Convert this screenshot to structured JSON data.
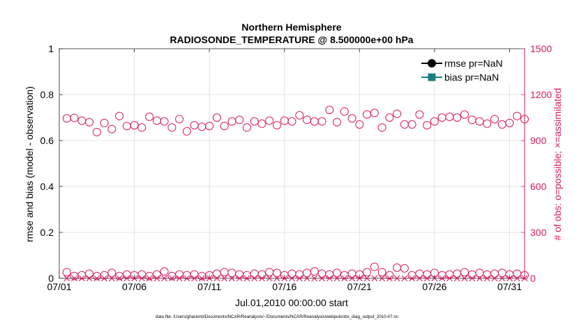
{
  "chart_data": {
    "type": "scatter",
    "title": "Northern Hemisphere",
    "subtitle": "RADIOSONDE_TEMPERATURE @ 8.500000e+00 hPa",
    "xlabel": "Jul.01,2010 00:00:00 start",
    "ylabel_left": "rmse and bias (model - observation)",
    "ylabel_right": "# of obs: o=possible; ×=assimilated",
    "footnote": "data file: /Users/gharamti/Documents/NCAR/Reanalysis/~/Documents/NCAR/Reanalysis/webpub/obs_diag_output_2010-07.nc",
    "x_ticks": [
      "07/01",
      "07/06",
      "07/11",
      "07/16",
      "07/21",
      "07/26",
      "07/31"
    ],
    "x_tick_days": [
      1,
      6,
      11,
      16,
      21,
      26,
      31
    ],
    "xlim": [
      1,
      32
    ],
    "ylim_left": [
      0,
      1
    ],
    "y_ticks_left": [
      "0",
      "0.2",
      "0.4",
      "0.6",
      "0.8",
      "1"
    ],
    "y_tick_values_left": [
      0,
      0.2,
      0.4,
      0.6,
      0.8,
      1
    ],
    "ylim_right": [
      0,
      1500
    ],
    "y_ticks_right": [
      "0",
      "300",
      "600",
      "900",
      "1200",
      "1500"
    ],
    "y_tick_values_right": [
      0,
      300,
      600,
      900,
      1200,
      1500
    ],
    "grid": true,
    "legend": {
      "position": "top-right",
      "entries": [
        {
          "label": "rmse pr=NaN",
          "color": "#000000",
          "marker": "circle"
        },
        {
          "label": "bias pr=NaN",
          "color": "#1a7f7f",
          "marker": "square"
        }
      ]
    },
    "series": [
      {
        "name": "possible (upper)",
        "marker": "circle-open",
        "color": "#d81b60",
        "axis": "right",
        "x": [
          1.5,
          2.0,
          2.5,
          3.0,
          3.5,
          4.0,
          4.5,
          5.0,
          5.5,
          6.0,
          6.5,
          7.0,
          7.5,
          8.0,
          8.5,
          9.0,
          9.5,
          10.0,
          10.5,
          11.0,
          11.5,
          12.0,
          12.5,
          13.0,
          13.5,
          14.0,
          14.5,
          15.0,
          15.5,
          16.0,
          16.5,
          17.0,
          17.5,
          18.0,
          18.5,
          19.0,
          19.5,
          20.0,
          20.5,
          21.0,
          21.5,
          22.0,
          22.5,
          23.0,
          23.5,
          24.0,
          24.5,
          25.0,
          25.5,
          26.0,
          26.5,
          27.0,
          27.5,
          28.0,
          28.5,
          29.0,
          29.5,
          30.0,
          30.5,
          31.0,
          31.5,
          32.0
        ],
        "y": [
          1045,
          1048,
          1030,
          1020,
          955,
          1015,
          975,
          1060,
          995,
          1000,
          985,
          1055,
          1030,
          1025,
          985,
          1040,
          960,
          1000,
          990,
          995,
          1050,
          995,
          1025,
          1035,
          985,
          1025,
          1010,
          1030,
          1000,
          1030,
          1025,
          1065,
          1035,
          1025,
          1025,
          1100,
          1020,
          1090,
          1045,
          1005,
          1070,
          1080,
          985,
          1050,
          1075,
          1005,
          1005,
          1070,
          1000,
          1025,
          1050,
          1055,
          1050,
          1070,
          1035,
          1025,
          1010,
          1040,
          1005,
          1015,
          1060,
          1040
        ]
      },
      {
        "name": "possible (lower)",
        "marker": "circle-open",
        "color": "#d81b60",
        "axis": "right",
        "x": [
          1.5,
          2.0,
          2.5,
          3.0,
          3.5,
          4.0,
          4.5,
          5.0,
          5.5,
          6.0,
          6.5,
          7.0,
          7.5,
          8.0,
          8.5,
          9.0,
          9.5,
          10.0,
          10.5,
          11.0,
          11.5,
          12.0,
          12.5,
          13.0,
          13.5,
          14.0,
          14.5,
          15.0,
          15.5,
          16.0,
          16.5,
          17.0,
          17.5,
          18.0,
          18.5,
          19.0,
          19.5,
          20.0,
          20.5,
          21.0,
          21.5,
          22.0,
          22.5,
          23.0,
          23.5,
          24.0,
          24.5,
          25.0,
          25.5,
          26.0,
          26.5,
          27.0,
          27.5,
          28.0,
          28.5,
          29.0,
          29.5,
          30.0,
          30.5,
          31.0,
          31.5,
          32.0
        ],
        "y": [
          40,
          15,
          20,
          30,
          15,
          20,
          35,
          15,
          25,
          20,
          25,
          15,
          25,
          45,
          15,
          25,
          20,
          25,
          15,
          20,
          30,
          40,
          35,
          25,
          20,
          30,
          25,
          40,
          35,
          20,
          30,
          25,
          35,
          45,
          30,
          25,
          35,
          20,
          30,
          25,
          40,
          75,
          40,
          20,
          70,
          65,
          20,
          30,
          25,
          35,
          20,
          25,
          30,
          40,
          25,
          35,
          25,
          30,
          35,
          25,
          30,
          20
        ]
      },
      {
        "name": "assimilated",
        "marker": "x",
        "color": "#d81b60",
        "axis": "right",
        "x": [
          1.5,
          2.0,
          2.5,
          3.0,
          3.5,
          4.0,
          4.5,
          5.0,
          5.5,
          6.0,
          6.5,
          7.0,
          7.5,
          8.0,
          8.5,
          9.0,
          9.5,
          10.0,
          10.5,
          11.0,
          11.5,
          12.0,
          12.5,
          13.0,
          13.5,
          14.0,
          14.5,
          15.0,
          15.5,
          16.0,
          16.5,
          17.0,
          17.5,
          18.0,
          18.5,
          19.0,
          19.5,
          20.0,
          20.5,
          21.0,
          21.5,
          22.0,
          22.5,
          23.0,
          23.5,
          24.0,
          24.5,
          25.0,
          25.5,
          26.0,
          26.5,
          27.0,
          27.5,
          28.0,
          28.5,
          29.0,
          29.5,
          30.0,
          30.5,
          31.0,
          31.5,
          32.0
        ],
        "y": [
          0,
          0,
          0,
          0,
          0,
          0,
          0,
          0,
          0,
          0,
          0,
          0,
          0,
          0,
          0,
          0,
          0,
          0,
          0,
          0,
          0,
          0,
          0,
          0,
          0,
          0,
          0,
          0,
          0,
          0,
          0,
          0,
          0,
          0,
          0,
          0,
          0,
          0,
          0,
          0,
          0,
          0,
          0,
          0,
          0,
          0,
          0,
          0,
          0,
          0,
          0,
          0,
          0,
          0,
          0,
          0,
          0,
          0,
          0,
          0,
          0,
          0
        ]
      }
    ],
    "colors": {
      "axis_right": "#d81b60",
      "axis_left": "#000000",
      "grid": "#dcdcdc"
    }
  }
}
